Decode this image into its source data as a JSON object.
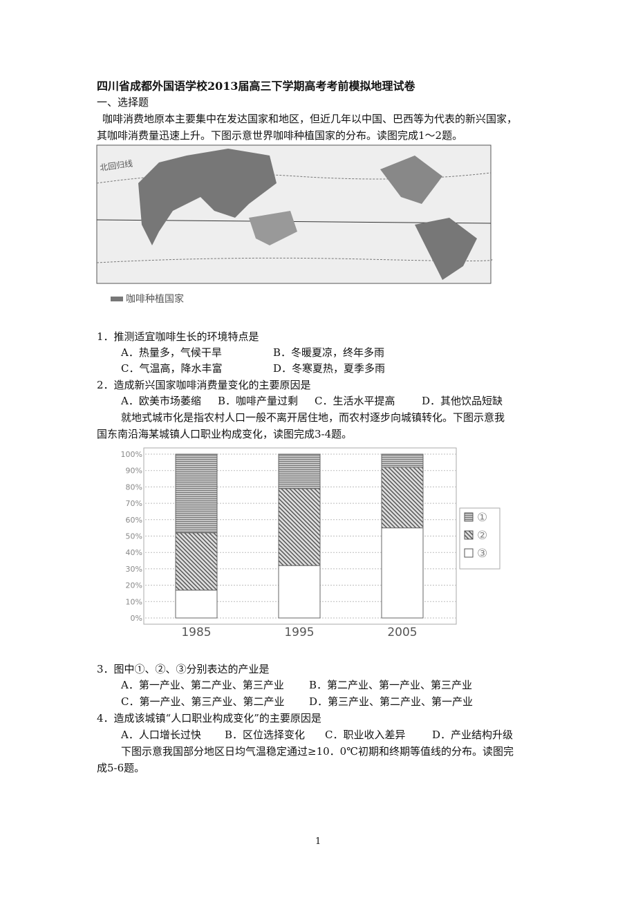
{
  "header": {
    "title": "四川省成都外国语学校2013届高三下学期高考考前模拟地理试卷",
    "section": "一、选择题"
  },
  "intro1": [
    "咖啡消费地原本主要集中在发达国家和地区，但近几年以中国、巴西等为代表的新兴国家，",
    "其咖啡消费量迅速上升。下图示意世界咖啡种植国家的分布。读图完成1～2题。"
  ],
  "map": {
    "tropic_label": "北回归线",
    "legend": "咖啡种植国家"
  },
  "questions": [
    {
      "stem": "1．推测适宜咖啡生长的环境特点是",
      "options": [
        "A．热量多，气候干旱",
        "B．冬暖夏凉，终年多雨",
        "C．气温高，降水丰富",
        "D．冬寒夏热，夏季多雨"
      ]
    },
    {
      "stem": "2．造成新兴国家咖啡消费量变化的主要原因是",
      "options": [
        "A．欧美市场萎缩",
        "B．咖啡产量过剩",
        "C．生活水平提高",
        "D．其他饮品短缺"
      ]
    },
    {
      "stem": "3．图中①、②、③分别表达的产业是",
      "options": [
        "A．第一产业、第二产业、第三产业",
        "B．第二产业、第一产业、第三产业",
        "C．第一产业、第三产业、第二产业",
        "D．第三产业、第二产业、第一产业"
      ]
    },
    {
      "stem": "4．造成该城镇“人口职业构成变化”的主要原因是",
      "options": [
        "A．人口增长过快",
        "B．区位选择变化",
        "C．职业收入差异",
        "D．产业结构升级"
      ]
    }
  ],
  "intro2": [
    "就地式城市化是指农村人口一般不离开居住地，而农村逐步向城镇转化。下图示意我",
    "国东南沿海某城镇人口职业构成变化，读图完成3-4题。"
  ],
  "intro3": [
    "下图示意我国部分地区日均气温稳定通过≥10．0℃初期和终期等值线的分布。读图完",
    "成5-6题。"
  ],
  "page_number": "1",
  "chart_data": {
    "type": "stacked-bar",
    "categories": [
      "1985",
      "1995",
      "2005"
    ],
    "series": [
      {
        "name": "③",
        "color": "#ffffff",
        "values": [
          17,
          32,
          55
        ]
      },
      {
        "name": "②",
        "color": "#555555",
        "values": [
          35,
          47,
          37
        ]
      },
      {
        "name": "①",
        "color": "#777777",
        "values": [
          48,
          21,
          8
        ]
      }
    ],
    "ylim": [
      0,
      100
    ],
    "yticks": [
      {
        "value": 0,
        "label": "0%"
      },
      {
        "value": 10,
        "label": "10%"
      },
      {
        "value": 20,
        "label": "20%"
      },
      {
        "value": 30,
        "label": "30%"
      },
      {
        "value": 40,
        "label": "40%"
      },
      {
        "value": 50,
        "label": "50%"
      },
      {
        "value": 60,
        "label": "60%"
      },
      {
        "value": 70,
        "label": "70%"
      },
      {
        "value": 80,
        "label": "80%"
      },
      {
        "value": 90,
        "label": "90%"
      },
      {
        "value": 100,
        "label": "100%"
      }
    ],
    "grid": true
  }
}
